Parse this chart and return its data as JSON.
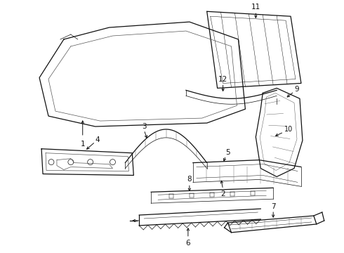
{
  "background_color": "#ffffff",
  "line_color": "#111111",
  "figure_width": 4.9,
  "figure_height": 3.6,
  "dpi": 100,
  "label_fontsize": 7.5
}
